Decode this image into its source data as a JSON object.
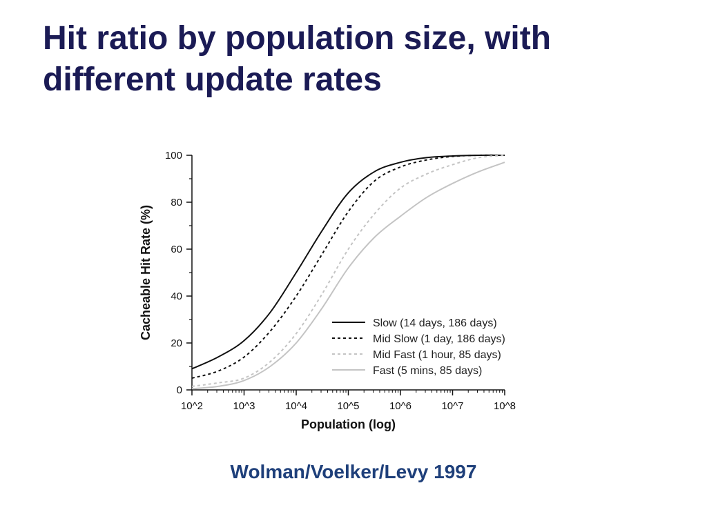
{
  "slide": {
    "title_line1": "Hit ratio by population size, with",
    "title_line2": "different update rates",
    "citation": "Wolman/Voelker/Levy 1997",
    "title_color": "#1b1b55",
    "citation_color": "#1e3f7a"
  },
  "chart_data": {
    "type": "line",
    "title": "",
    "xlabel": "Population (log)",
    "ylabel": "Cacheable Hit Rate (%)",
    "x_scale": "log10",
    "xlim": [
      2,
      8
    ],
    "ylim": [
      0,
      100
    ],
    "x_ticks": [
      2,
      3,
      4,
      5,
      6,
      7,
      8
    ],
    "x_tick_labels": [
      "10^2",
      "10^3",
      "10^4",
      "10^5",
      "10^6",
      "10^7",
      "10^8"
    ],
    "y_ticks": [
      0,
      20,
      40,
      60,
      80,
      100
    ],
    "y_tick_labels": [
      "0",
      "20",
      "40",
      "60",
      "80",
      "100"
    ],
    "grid": false,
    "legend_position": "bottom-right",
    "x": [
      2,
      2.5,
      3,
      3.5,
      4,
      4.5,
      5,
      5.5,
      6,
      6.5,
      7,
      7.5,
      8
    ],
    "series": [
      {
        "name": "Slow (14 days, 186 days)",
        "color": "#111111",
        "dash": "solid",
        "values": [
          9,
          14,
          21,
          33,
          50,
          68,
          84,
          93,
          97,
          99,
          99.7,
          100,
          100
        ]
      },
      {
        "name": "Mid Slow (1 day, 186 days)",
        "color": "#111111",
        "dash": "dashed",
        "values": [
          5,
          8,
          14,
          25,
          40,
          58,
          76,
          89,
          95,
          98,
          99.5,
          100,
          100
        ]
      },
      {
        "name": "Mid Fast (1 hour, 85 days)",
        "color": "#c4c4c4",
        "dash": "dashed",
        "values": [
          1.5,
          3,
          5,
          12,
          24,
          41,
          60,
          75,
          86,
          92,
          96,
          99,
          100
        ]
      },
      {
        "name": "Fast (5 mins, 85 days)",
        "color": "#c4c4c4",
        "dash": "solid",
        "values": [
          0.5,
          1.5,
          4,
          10,
          20,
          35,
          52,
          65,
          74,
          82,
          88,
          93,
          97
        ]
      }
    ]
  }
}
